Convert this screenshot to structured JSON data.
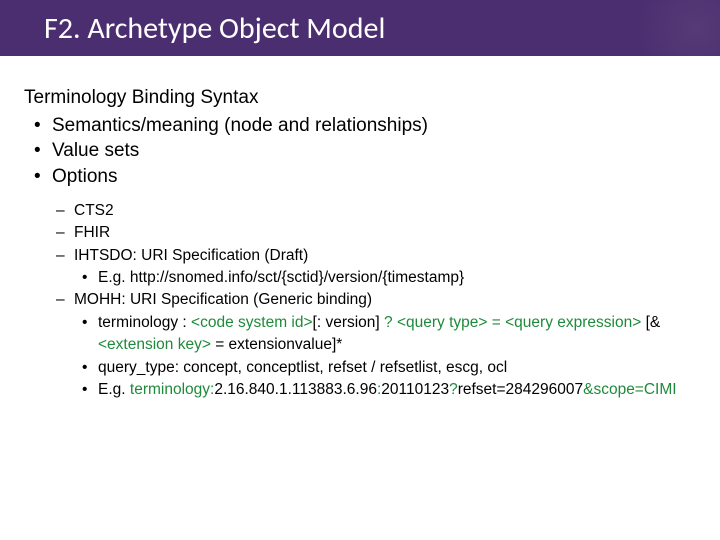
{
  "colors": {
    "header_bg": "#4b2e6f",
    "title_color": "#ffffff",
    "body_text": "#000000",
    "accent_green": "#1f8a3b"
  },
  "header": {
    "title": "F2. Archetype Object Model"
  },
  "content": {
    "lead": "Terminology Binding Syntax",
    "l1": [
      "Semantics/meaning (node and relationships)",
      "Value sets",
      "Options"
    ],
    "l2": [
      {
        "text": "CTS2",
        "sub": []
      },
      {
        "text": "FHIR",
        "sub": []
      },
      {
        "text": "IHTSDO: URI Specification (Draft)",
        "sub": [
          {
            "segments": [
              {
                "t": "E.g. http://snomed.info/sct/{sctid}/version/{timestamp}",
                "c": "#000000"
              }
            ]
          }
        ]
      },
      {
        "text": "MOHH: URI Specification (Generic binding)",
        "sub": [
          {
            "segments": [
              {
                "t": "terminology : ",
                "c": "#000000"
              },
              {
                "t": "<code system id>",
                "c": "#1f8a3b"
              },
              {
                "t": "[: version]",
                "c": "#000000"
              },
              {
                "t": " ? ",
                "c": "#1f8a3b"
              },
              {
                "t": "<query type>",
                "c": "#1f8a3b"
              },
              {
                "t": " = ",
                "c": "#1f8a3b"
              },
              {
                "t": "<query expression>",
                "c": "#1f8a3b"
              },
              {
                "t": " [& ",
                "c": "#000000"
              },
              {
                "t": "<extension key>",
                "c": "#1f8a3b"
              },
              {
                "t": " = extensionvalue]*",
                "c": "#000000"
              }
            ]
          },
          {
            "segments": [
              {
                "t": "query_type: concept, conceptlist, refset / refsetlist, escg, ocl",
                "c": "#000000"
              }
            ]
          },
          {
            "segments": [
              {
                "t": "E.g. ",
                "c": "#000000"
              },
              {
                "t": "terminology:",
                "c": "#1f8a3b"
              },
              {
                "t": "2.16.840.1.113883.6.96",
                "c": "#000000"
              },
              {
                "t": ":",
                "c": "#1f8a3b"
              },
              {
                "t": "20110123",
                "c": "#000000"
              },
              {
                "t": "?",
                "c": "#1f8a3b"
              },
              {
                "t": "refset=284296007",
                "c": "#000000"
              },
              {
                "t": "&scope=CIMI",
                "c": "#1f8a3b"
              }
            ]
          }
        ]
      }
    ]
  }
}
